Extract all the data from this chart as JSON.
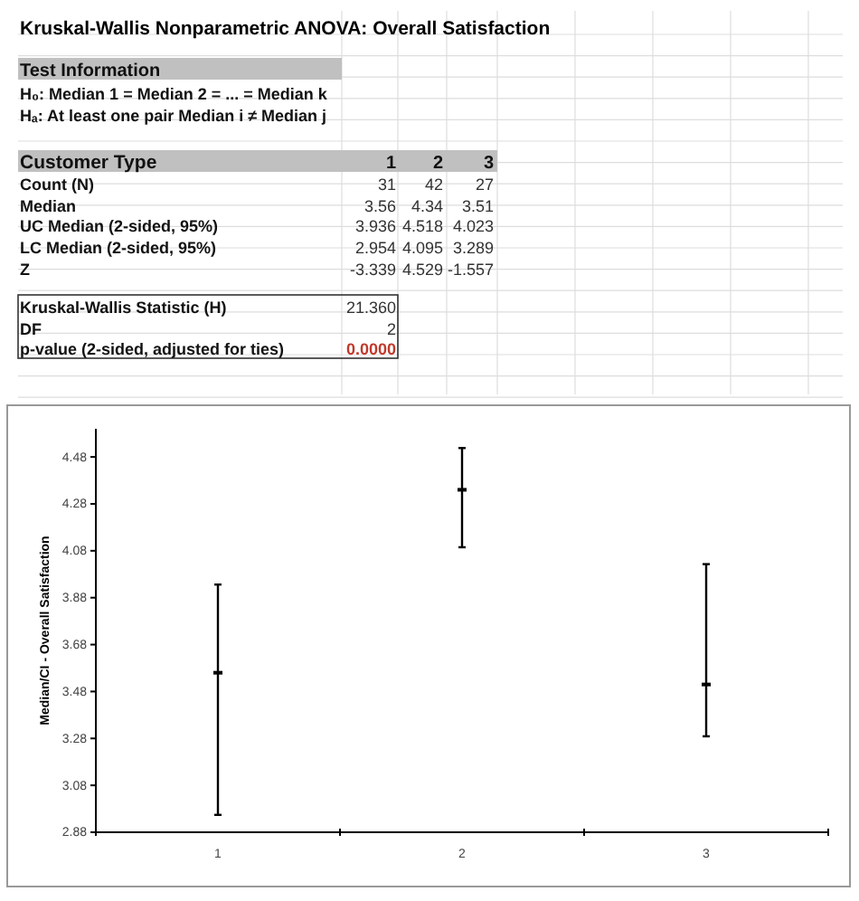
{
  "chart_data": {
    "type": "scatter",
    "title": "Kruskal-Wallis Nonparametric ANOVA: Overall Satisfaction",
    "ylabel": "Median/CI - Overall Satisfaction",
    "categories": [
      "1",
      "2",
      "3"
    ],
    "values": [
      3.56,
      4.34,
      3.51
    ],
    "errors": [
      [
        2.954,
        3.936
      ],
      [
        4.095,
        4.518
      ],
      [
        3.289,
        4.023
      ]
    ],
    "color": "#000000",
    "ylim": [
      2.88,
      4.6
    ],
    "yticks": [
      2.88,
      3.08,
      3.28,
      3.48,
      3.68,
      3.88,
      4.08,
      4.28,
      4.48
    ],
    "annotations": [
      "Test Information",
      "H₀: Median 1 = Median 2 = ... = Median k",
      "Hₐ: At least one pair Median i ≠ Median j",
      "Customer Type",
      "Count (N)",
      "31",
      "42",
      "27",
      "Median",
      "3.56",
      "4.34",
      "3.51",
      "UC Median (2-sided, 95%)",
      "3.936",
      "4.518",
      "4.023",
      "LC Median (2-sided, 95%)",
      "2.954",
      "4.095",
      "3.289",
      "Z",
      "-3.339",
      "4.529",
      "-1.557",
      "Kruskal-Wallis Statistic (H)",
      "21.360",
      "DF",
      "2",
      "p-value (2-sided, adjusted for ties)",
      "0.0000"
    ]
  }
}
